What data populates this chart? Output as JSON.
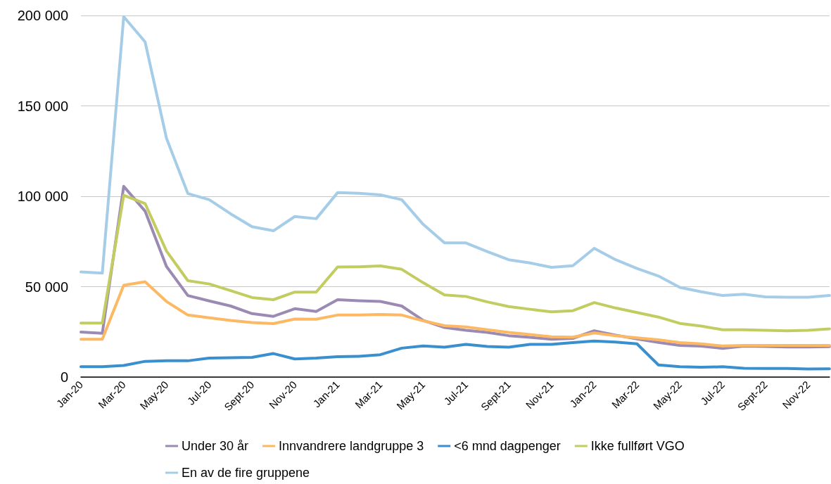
{
  "chart_data": {
    "type": "line",
    "categories": [
      "Jan-20",
      null,
      "Mar-20",
      null,
      "May-20",
      null,
      "Jul-20",
      null,
      "Sept-20",
      null,
      "Nov-20",
      null,
      "Jan-21",
      null,
      "Mar-21",
      null,
      "May-21",
      null,
      "Jul-21",
      null,
      "Sept-21",
      null,
      "Nov-21",
      null,
      "Jan-22",
      null,
      "Mar-22",
      null,
      "May-22",
      null,
      "Jul-22",
      null,
      "Sept-22",
      null,
      "Nov-22",
      null
    ],
    "series": [
      {
        "name": "Under 30 år",
        "color": "#9b8bb4",
        "values": [
          24900,
          24200,
          105500,
          91800,
          61200,
          45100,
          42100,
          39300,
          35100,
          33600,
          37800,
          36300,
          42800,
          42200,
          41800,
          39300,
          31400,
          27400,
          25900,
          24700,
          22900,
          22000,
          20900,
          21400,
          25600,
          23200,
          21100,
          19200,
          17500,
          17100,
          15900,
          17100,
          16900,
          16600,
          16600,
          16800
        ]
      },
      {
        "name": "Innvandrere landgruppe 3",
        "color": "#fdb863",
        "values": [
          20900,
          20900,
          50800,
          52700,
          41800,
          34300,
          32800,
          31300,
          30200,
          29600,
          32100,
          32000,
          34300,
          34300,
          34600,
          34300,
          31100,
          28400,
          27700,
          26200,
          24700,
          23500,
          22300,
          22100,
          24400,
          22900,
          21700,
          20600,
          19100,
          18400,
          17200,
          17500,
          17500,
          17500,
          17500,
          17500
        ]
      },
      {
        "name": "<6 mnd dagpenger",
        "color": "#3a8fce",
        "values": [
          5700,
          5700,
          6400,
          8700,
          9000,
          9000,
          10500,
          10700,
          10900,
          13000,
          10000,
          10500,
          11300,
          11500,
          12400,
          16000,
          17200,
          16500,
          18100,
          16900,
          16500,
          18100,
          18100,
          19100,
          19900,
          19400,
          18400,
          6700,
          5700,
          5400,
          5700,
          4900,
          4800,
          4800,
          4500,
          4600
        ]
      },
      {
        "name": "Ikke fullført VGO",
        "color": "#c3cc60",
        "values": [
          29900,
          29900,
          100500,
          96000,
          69700,
          53300,
          51500,
          47800,
          44000,
          42800,
          47000,
          47000,
          60900,
          61000,
          61500,
          59600,
          52200,
          45400,
          44600,
          41600,
          39000,
          37500,
          36100,
          36700,
          41200,
          38200,
          35700,
          33200,
          29700,
          28200,
          26200,
          26200,
          25900,
          25600,
          25900,
          26700
        ]
      },
      {
        "name": "En av de fire gruppene",
        "color": "#a5cde8",
        "values": [
          58200,
          57500,
          199300,
          185400,
          132100,
          101500,
          98100,
          90300,
          83200,
          80900,
          88800,
          87600,
          102000,
          101700,
          100800,
          98100,
          84500,
          74200,
          74200,
          69400,
          64900,
          63100,
          60700,
          61600,
          71200,
          64900,
          60100,
          55900,
          49600,
          47200,
          45100,
          45800,
          44400,
          44200,
          44200,
          45100
        ]
      }
    ],
    "ylim": [
      0,
      200000
    ],
    "yticks": [
      0,
      {
        "value": 50000,
        "label": "50 000"
      },
      {
        "value": 100000,
        "label": "100 000"
      },
      {
        "value": 150000,
        "label": "150 000"
      },
      {
        "value": 200000,
        "label": "200 000"
      }
    ],
    "grid": "y",
    "legend": "bottom",
    "marker": "none",
    "line_style": "solid"
  }
}
